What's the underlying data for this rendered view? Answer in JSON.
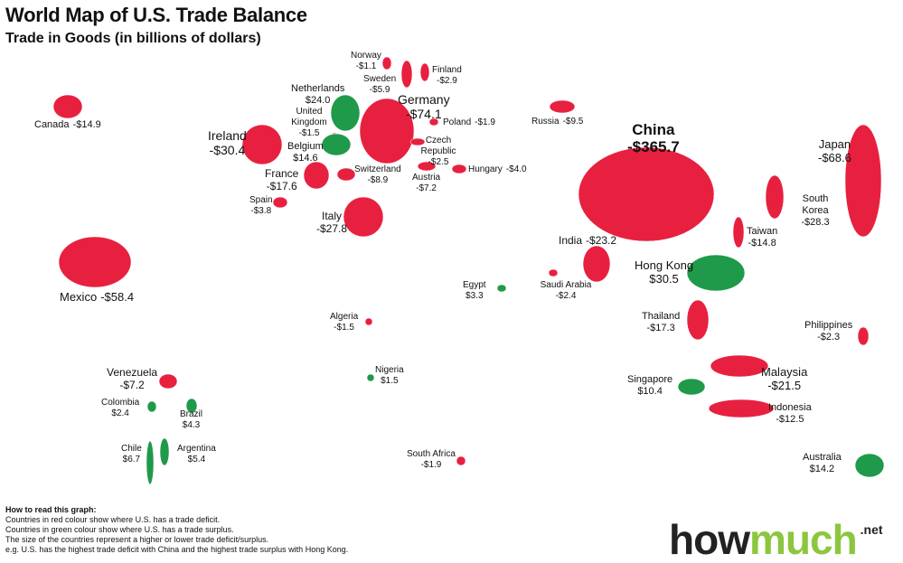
{
  "header": {
    "title": "World Map of U.S. Trade Balance",
    "subtitle": "Trade in Goods (in billions of dollars)"
  },
  "countries": [
    {
      "name": "Canada",
      "value": "-$14.9"
    },
    {
      "name": "Norway",
      "value": "-$1.1"
    },
    {
      "name": "Finland",
      "value": "-$2.9"
    },
    {
      "name": "Sweden",
      "value": "-$5.9"
    },
    {
      "name": "Netherlands",
      "value": "$24.0"
    },
    {
      "name": "Germany",
      "value": "-$74.1"
    },
    {
      "name": "United Kingdom",
      "value": "-$1.5"
    },
    {
      "name": "Poland",
      "value": "-$1.9"
    },
    {
      "name": "Russia",
      "value": "-$9.5"
    },
    {
      "name": "Ireland",
      "value": "-$30.4"
    },
    {
      "name": "Belgium",
      "value": "$14.6"
    },
    {
      "name": "Czech Republic",
      "value": "-$2.5"
    },
    {
      "name": "France",
      "value": "-$17.6"
    },
    {
      "name": "Switzerland",
      "value": "-$8.9"
    },
    {
      "name": "Austria",
      "value": "-$7.2"
    },
    {
      "name": "Hungary",
      "value": "-$4.0"
    },
    {
      "name": "Spain",
      "value": "-$3.8"
    },
    {
      "name": "Italy",
      "value": "-$27.8"
    },
    {
      "name": "China",
      "value": "-$365.7"
    },
    {
      "name": "Japan",
      "value": "-$68.6"
    },
    {
      "name": "South Korea",
      "value": "-$28.3"
    },
    {
      "name": "Taiwan",
      "value": "-$14.8"
    },
    {
      "name": "India",
      "value": "-$23.2"
    },
    {
      "name": "Hong Kong",
      "value": "$30.5"
    },
    {
      "name": "Mexico",
      "value": "-$58.4"
    },
    {
      "name": "Egypt",
      "value": "$3.3"
    },
    {
      "name": "Saudi Arabia",
      "value": "-$2.4"
    },
    {
      "name": "Algeria",
      "value": "-$1.5"
    },
    {
      "name": "Thailand",
      "value": "-$17.3"
    },
    {
      "name": "Philippines",
      "value": "-$2.3"
    },
    {
      "name": "Venezuela",
      "value": "-$7.2"
    },
    {
      "name": "Malaysia",
      "value": "-$21.5"
    },
    {
      "name": "Nigeria",
      "value": "$1.5"
    },
    {
      "name": "Singapore",
      "value": "$10.4"
    },
    {
      "name": "Colombia",
      "value": "$2.4"
    },
    {
      "name": "Brazil",
      "value": "$4.3"
    },
    {
      "name": "Indonesia",
      "value": "-$12.5"
    },
    {
      "name": "Chile",
      "value": "$6.7"
    },
    {
      "name": "Argentina",
      "value": "$5.4"
    },
    {
      "name": "South Africa",
      "value": "-$1.9"
    },
    {
      "name": "Australia",
      "value": "$14.2"
    }
  ],
  "notes": {
    "heading": "How to read this graph:",
    "lines": [
      "Countries in red colour show where U.S. has a trade deficit.",
      "Countries in green colour show where U.S. has a trade surplus.",
      "The size of the countries represent a higher or lower trade deficit/surplus.",
      "e.g. U.S. has the highest trade deficit with China and the highest trade surplus with Hong Kong."
    ]
  },
  "logo": {
    "part1": "how",
    "part2": "much",
    "suffix": ".net"
  }
}
